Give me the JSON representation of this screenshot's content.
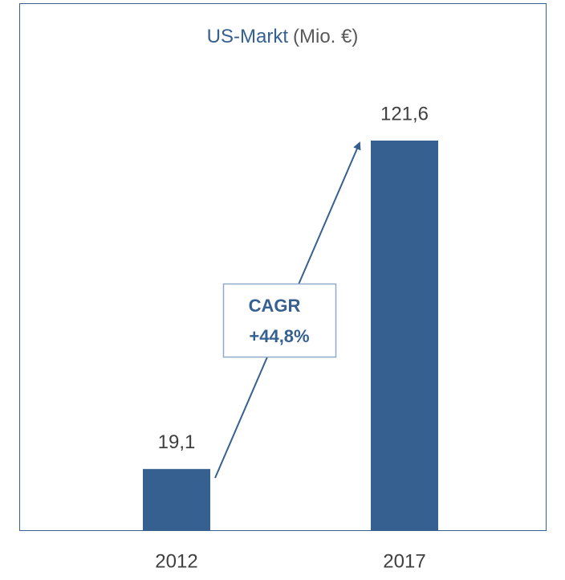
{
  "chart_data": {
    "type": "bar",
    "title": "US-Markt",
    "unit": "(Mio. €)",
    "categories": [
      "2012",
      "2017"
    ],
    "values": [
      19.1,
      121.6
    ],
    "value_labels": [
      "19,1",
      "121,6"
    ],
    "color": "#36608f",
    "annotation": [
      "CAGR",
      "+44,8%"
    ]
  }
}
